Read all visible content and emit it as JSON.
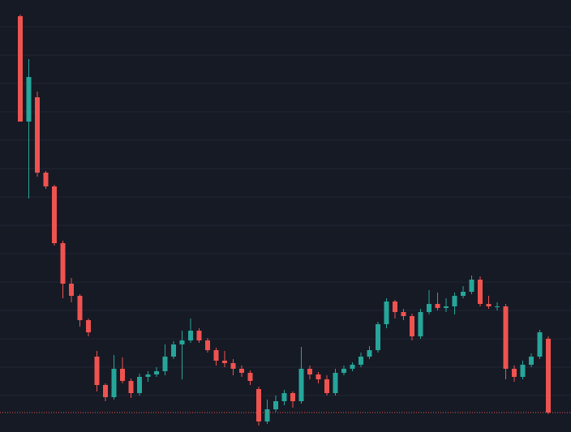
{
  "chart_data": {
    "type": "candlestick",
    "open": [
      513,
      383,
      413,
      320,
      303,
      233,
      183,
      168,
      138,
      93,
      58,
      43,
      78,
      63,
      48,
      68,
      71,
      75,
      93,
      108,
      113,
      125,
      113,
      101,
      88,
      85,
      78,
      73,
      53,
      13,
      28,
      38,
      48,
      38,
      78,
      71,
      65,
      48,
      73,
      78,
      83,
      93,
      101,
      133,
      161,
      148,
      143,
      118,
      148,
      158,
      153,
      155,
      168,
      173,
      188,
      158,
      155,
      155,
      78,
      68,
      83,
      93,
      115
    ],
    "high": [
      515,
      460,
      420,
      322,
      305,
      236,
      190,
      170,
      140,
      100,
      60,
      95,
      92,
      66,
      72,
      75,
      80,
      108,
      112,
      125,
      140,
      128,
      116,
      104,
      100,
      90,
      82,
      76,
      56,
      40,
      45,
      52,
      50,
      105,
      82,
      74,
      70,
      78,
      82,
      86,
      98,
      106,
      136,
      165,
      163,
      152,
      146,
      152,
      175,
      172,
      165,
      172,
      180,
      193,
      192,
      168,
      160,
      158,
      82,
      88,
      97,
      126,
      118
    ],
    "low": [
      383,
      288,
      315,
      300,
      230,
      165,
      160,
      130,
      118,
      50,
      38,
      40,
      60,
      42,
      45,
      62,
      68,
      70,
      90,
      65,
      110,
      110,
      98,
      82,
      80,
      70,
      68,
      58,
      8,
      10,
      25,
      33,
      30,
      35,
      65,
      60,
      45,
      45,
      70,
      75,
      80,
      90,
      98,
      128,
      140,
      138,
      113,
      115,
      145,
      150,
      148,
      145,
      165,
      170,
      155,
      152,
      150,
      65,
      62,
      65,
      80,
      90,
      22
    ],
    "close": [
      383,
      438,
      320,
      303,
      233,
      183,
      168,
      138,
      123,
      58,
      43,
      78,
      63,
      48,
      68,
      71,
      75,
      93,
      108,
      113,
      125,
      113,
      101,
      88,
      85,
      78,
      73,
      63,
      13,
      28,
      38,
      48,
      38,
      78,
      71,
      65,
      48,
      73,
      78,
      83,
      93,
      101,
      133,
      161,
      148,
      143,
      118,
      148,
      158,
      153,
      155,
      168,
      173,
      188,
      158,
      155,
      155,
      78,
      68,
      83,
      93,
      123,
      24
    ],
    "up_color": "#26a69a",
    "down_color": "#ef5350",
    "ylim": [
      0,
      533
    ],
    "yticks": [
      45,
      80,
      115,
      150,
      185,
      220,
      255,
      290,
      325,
      360,
      395,
      430,
      465,
      500
    ],
    "grid": true,
    "last_price_line": true
  }
}
